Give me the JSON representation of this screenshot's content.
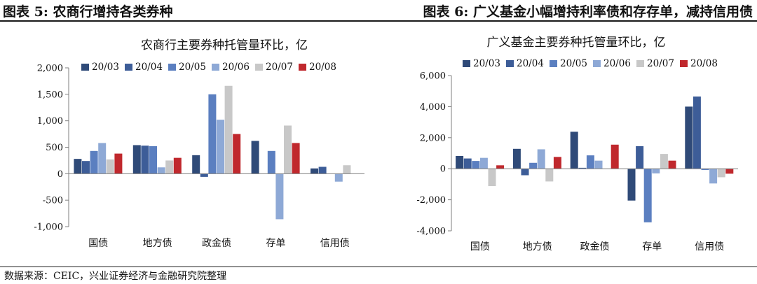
{
  "figures": {
    "left_label": "图表 5:  农商行增持各类券种",
    "right_label": "图表 6:  广义基金小幅增持利率债和存存单，减持信用债"
  },
  "source": "数据来源：CEIC，兴业证券经济与金融研究院整理",
  "series_colors": [
    "#2f4a78",
    "#3d5d98",
    "#5b7fc0",
    "#8ea9d6",
    "#c8c8c8",
    "#c0282d"
  ],
  "chart_data": [
    {
      "type": "bar",
      "title": "农商行主要券种托管量环比，亿",
      "categories": [
        "国债",
        "地方债",
        "政金债",
        "存单",
        "信用债"
      ],
      "series": [
        {
          "name": "20/03",
          "values": [
            280,
            540,
            350,
            620,
            100
          ]
        },
        {
          "name": "20/04",
          "values": [
            240,
            530,
            -60,
            0,
            130
          ]
        },
        {
          "name": "20/05",
          "values": [
            430,
            520,
            1500,
            430,
            0
          ]
        },
        {
          "name": "20/06",
          "values": [
            580,
            120,
            1020,
            -860,
            -150
          ]
        },
        {
          "name": "20/07",
          "values": [
            270,
            250,
            1660,
            910,
            160
          ]
        },
        {
          "name": "20/08",
          "values": [
            380,
            300,
            750,
            580,
            0
          ]
        }
      ],
      "ylim": [
        -1000,
        2000
      ],
      "yticks": [
        "-1,000",
        "-500",
        "0",
        "500",
        "1,000",
        "1,500",
        "2,000"
      ],
      "ytick_values": [
        -1000,
        -500,
        0,
        500,
        1000,
        1500,
        2000
      ],
      "xlabel": "",
      "ylabel": "",
      "legend": "top",
      "grid": false
    },
    {
      "type": "bar",
      "title": "广义基金主要券种托管量环比，亿",
      "categories": [
        "国债",
        "地方债",
        "政金债",
        "存单",
        "信用债"
      ],
      "series": [
        {
          "name": "20/03",
          "values": [
            820,
            1280,
            2380,
            -2050,
            4000
          ]
        },
        {
          "name": "20/04",
          "values": [
            660,
            -420,
            60,
            1450,
            4650
          ]
        },
        {
          "name": "20/05",
          "values": [
            500,
            380,
            860,
            -3450,
            -80
          ]
        },
        {
          "name": "20/06",
          "values": [
            700,
            1250,
            520,
            -300,
            -950
          ]
        },
        {
          "name": "20/07",
          "values": [
            -1120,
            -820,
            0,
            950,
            -550
          ]
        },
        {
          "name": "20/08",
          "values": [
            220,
            760,
            1550,
            520,
            -320
          ]
        }
      ],
      "ylim": [
        -4000,
        6000
      ],
      "yticks": [
        "-4,000",
        "-2,000",
        "0",
        "2,000",
        "4,000",
        "6,000"
      ],
      "ytick_values": [
        -4000,
        -2000,
        0,
        2000,
        4000,
        6000
      ],
      "xlabel": "",
      "ylabel": "",
      "legend": "top",
      "grid": false
    }
  ]
}
